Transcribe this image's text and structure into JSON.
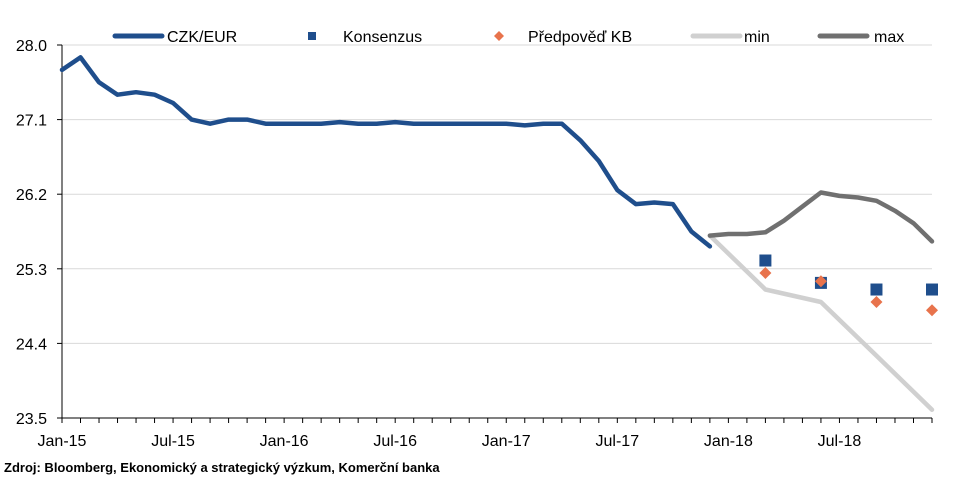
{
  "chart_data": {
    "type": "line",
    "title": "",
    "xlabel": "",
    "ylabel": "",
    "ylim": [
      23.5,
      28.0
    ],
    "yticks": [
      "28.0",
      "27.1",
      "26.2",
      "25.3",
      "24.4",
      "23.5"
    ],
    "yticks_values": [
      28.0,
      27.1,
      26.2,
      25.3,
      24.4,
      23.5
    ],
    "xlim": [
      "2015-01",
      "2018-12"
    ],
    "xticks": [
      "Jan-15",
      "Jul-15",
      "Jan-16",
      "Jul-16",
      "Jan-17",
      "Jul-17",
      "Jan-18",
      "Jul-18"
    ],
    "xticks_values": [
      "2015-01",
      "2015-07",
      "2016-01",
      "2016-07",
      "2017-01",
      "2017-07",
      "2018-01",
      "2018-07"
    ],
    "grid": "horizontal",
    "legend_position": "top",
    "series": [
      {
        "name": "CZK/EUR",
        "style": "line",
        "color": "#1f4e8c",
        "x": [
          "2015-01",
          "2015-02",
          "2015-03",
          "2015-04",
          "2015-05",
          "2015-06",
          "2015-07",
          "2015-08",
          "2015-09",
          "2015-10",
          "2015-11",
          "2015-12",
          "2016-01",
          "2016-02",
          "2016-03",
          "2016-04",
          "2016-05",
          "2016-06",
          "2016-07",
          "2016-08",
          "2016-09",
          "2016-10",
          "2016-11",
          "2016-12",
          "2017-01",
          "2017-02",
          "2017-03",
          "2017-04",
          "2017-05",
          "2017-06",
          "2017-07",
          "2017-08",
          "2017-09",
          "2017-10",
          "2017-11",
          "2017-12"
        ],
        "y": [
          27.7,
          27.85,
          27.55,
          27.4,
          27.43,
          27.4,
          27.3,
          27.1,
          27.05,
          27.1,
          27.1,
          27.05,
          27.05,
          27.05,
          27.05,
          27.07,
          27.05,
          27.05,
          27.07,
          27.05,
          27.05,
          27.05,
          27.05,
          27.05,
          27.05,
          27.03,
          27.05,
          27.05,
          26.85,
          26.6,
          26.25,
          26.08,
          26.1,
          26.08,
          25.75,
          25.57
        ]
      },
      {
        "name": "Konsenzus",
        "style": "square",
        "color": "#1f4e8c",
        "x": [
          "2018-03",
          "2018-06",
          "2018-09",
          "2018-12"
        ],
        "y": [
          25.4,
          25.13,
          25.05,
          25.05
        ]
      },
      {
        "name": "Předpověď KB",
        "style": "diamond",
        "color": "#e8734c",
        "x": [
          "2018-03",
          "2018-06",
          "2018-09",
          "2018-12"
        ],
        "y": [
          25.25,
          25.15,
          24.9,
          24.8
        ]
      },
      {
        "name": "min",
        "style": "line",
        "color": "#d0d0d0",
        "x": [
          "2017-12",
          "2018-03",
          "2018-06",
          "2018-09",
          "2018-12"
        ],
        "y": [
          25.7,
          25.05,
          24.9,
          24.25,
          23.6
        ]
      },
      {
        "name": "max",
        "style": "line",
        "color": "#707070",
        "x": [
          "2017-12",
          "2018-01",
          "2018-02",
          "2018-03",
          "2018-04",
          "2018-05",
          "2018-06",
          "2018-07",
          "2018-08",
          "2018-09",
          "2018-10",
          "2018-11",
          "2018-12"
        ],
        "y": [
          25.7,
          25.72,
          25.72,
          25.74,
          25.88,
          26.05,
          26.22,
          26.18,
          26.16,
          26.12,
          26.0,
          25.85,
          25.63
        ]
      }
    ]
  },
  "source_note": "Zdroj: Bloomberg, Ekonomický a strategický výzkum, Komerční banka"
}
